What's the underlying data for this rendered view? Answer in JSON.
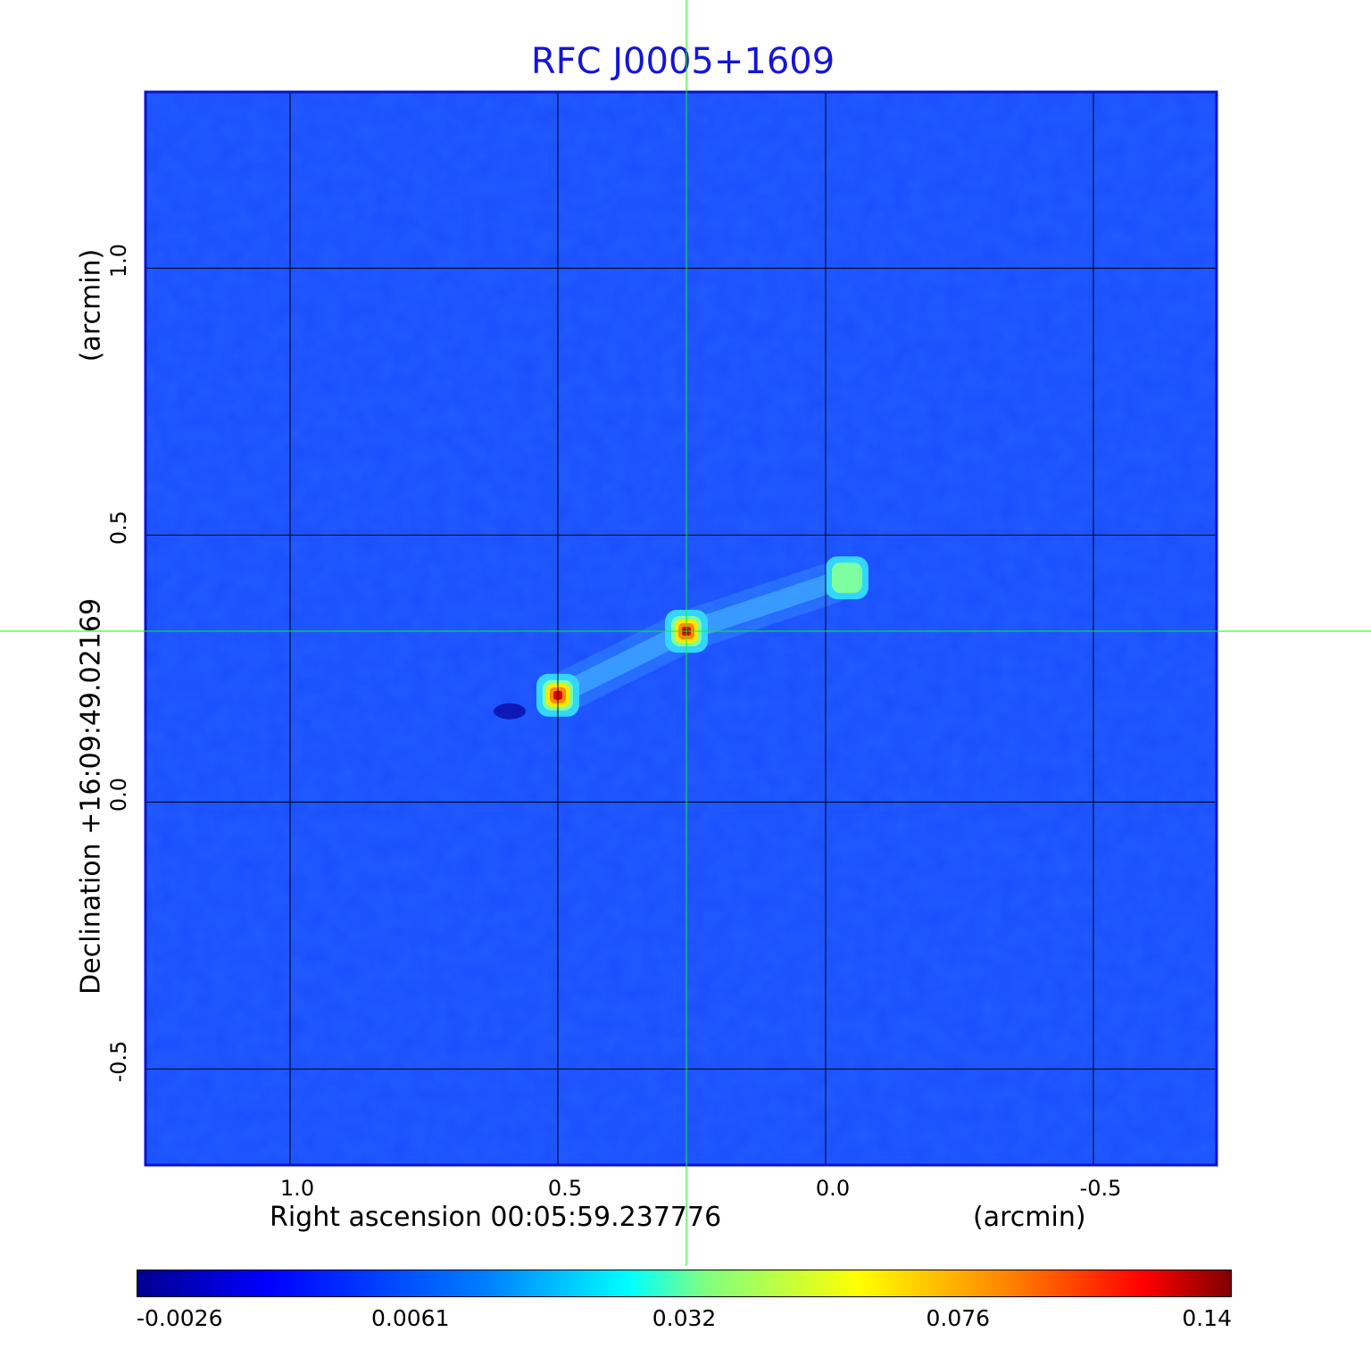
{
  "title": "RFC J0005+1609",
  "chart_data": {
    "type": "heatmap",
    "title": "RFC J0005+1609",
    "xlabel": "Right ascension  00:05:59.237776",
    "xlabel_unit": "(arcmin)",
    "ylabel": "Declination  +16:09:49.02169",
    "ylabel_unit": "(arcmin)",
    "x_ticks": [
      "1.0",
      "0.5",
      "0.0",
      "-0.5"
    ],
    "y_ticks": [
      "1.0",
      "0.5",
      "0.0",
      "-0.5"
    ],
    "x_tick_values": [
      1.0,
      0.5,
      0.0,
      -0.5
    ],
    "y_tick_values": [
      1.0,
      0.5,
      0.0,
      -0.5
    ],
    "xlim": [
      1.27,
      -0.73
    ],
    "ylim": [
      -0.68,
      1.33
    ],
    "grid": true,
    "crosshair": {
      "x": 0.26,
      "y": 0.32
    },
    "colorscale": "jet",
    "colorbar_ticks": [
      "-0.0026",
      "0.0061",
      "0.032",
      "0.076",
      "0.14"
    ],
    "colorbar_range": [
      -0.0026,
      0.14
    ],
    "sources": [
      {
        "x": 0.26,
        "y": 0.32,
        "peak": 0.14
      },
      {
        "x": 0.5,
        "y": 0.2,
        "peak": 0.09
      },
      {
        "x": -0.04,
        "y": 0.42,
        "peak": 0.035
      }
    ],
    "negative_spot": {
      "x": 0.59,
      "y": 0.17
    }
  },
  "colors": {
    "title": "#1515d5",
    "background_field": "#1a4dff",
    "crosshair": "#00ff00",
    "grid": "#000000"
  }
}
